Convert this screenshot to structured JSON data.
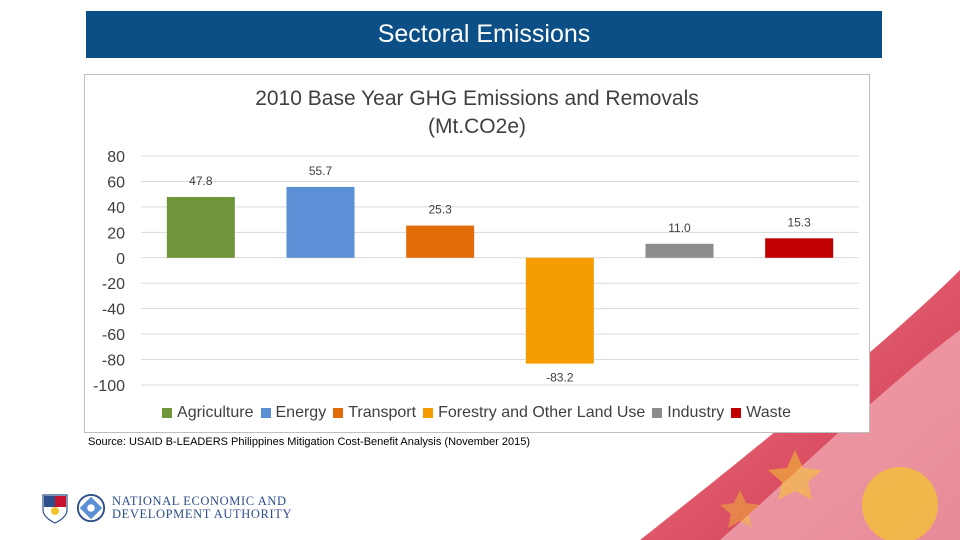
{
  "slide": {
    "title": "Sectoral Emissions",
    "source": "Source: USAID B-LEADERS Philippines Mitigation Cost-Benefit Analysis (November 2015)"
  },
  "branding": {
    "agency_line1": "NATIONAL ECONOMIC AND",
    "agency_line2": "DEVELOPMENT AUTHORITY"
  },
  "colors": {
    "title_bar": "#0b4f86",
    "flag_red": "#c8102e",
    "flag_yellow": "#f4c430"
  },
  "chart_data": {
    "type": "bar",
    "title_line1": "2010 Base Year GHG Emissions and Removals",
    "title_line2": "(Mt.CO2e)",
    "categories": [
      "Agriculture",
      "Energy",
      "Transport",
      "Forestry and Other Land Use",
      "Industry",
      "Waste"
    ],
    "values": [
      47.8,
      55.7,
      25.3,
      -83.2,
      11.0,
      15.3
    ],
    "value_labels": [
      "47.8",
      "55.7",
      "25.3",
      "-83.2",
      "11.0",
      "15.3"
    ],
    "colors": [
      "#71953a",
      "#5b8fd6",
      "#e36c0a",
      "#f59d00",
      "#8c8c8c",
      "#c00000"
    ],
    "yticks": [
      "80",
      "60",
      "40",
      "20",
      "0",
      "-20",
      "-40",
      "-60",
      "-80",
      "-100"
    ],
    "ylim": [
      -100,
      80
    ],
    "grid": true,
    "legend_position": "bottom"
  }
}
